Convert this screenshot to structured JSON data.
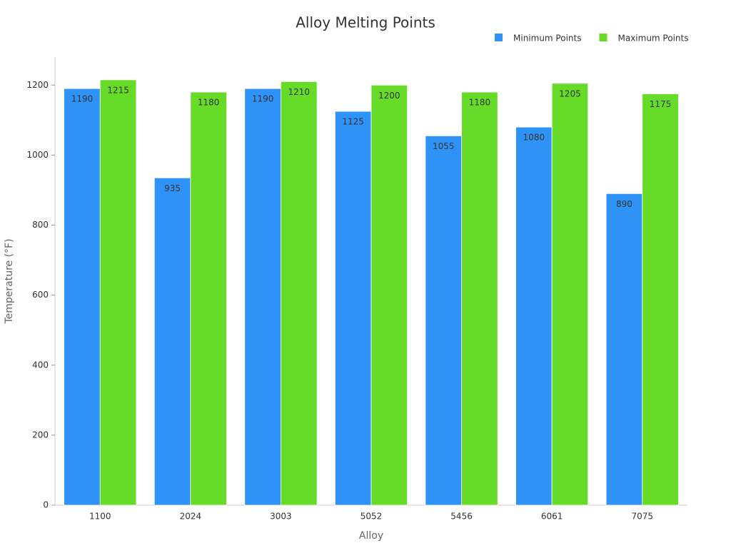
{
  "chart_data": {
    "type": "bar",
    "title": "Alloy Melting Points",
    "x_label": "Alloy",
    "y_label": "Temperature (°F)",
    "categories": [
      "1100",
      "2024",
      "3003",
      "5052",
      "5456",
      "6061",
      "7075"
    ],
    "series": [
      {
        "name": "Minimum Points",
        "color": "#2f92f7",
        "values": [
          1190,
          935,
          1190,
          1125,
          1055,
          1080,
          890
        ]
      },
      {
        "name": "Maximum Points",
        "color": "#66db28",
        "values": [
          1215,
          1180,
          1210,
          1200,
          1180,
          1205,
          1175
        ]
      }
    ],
    "ylim": [
      0,
      1280
    ],
    "yticks": [
      0,
      200,
      400,
      600,
      800,
      1000,
      1200
    ],
    "grid": false,
    "legend": "top-right"
  }
}
